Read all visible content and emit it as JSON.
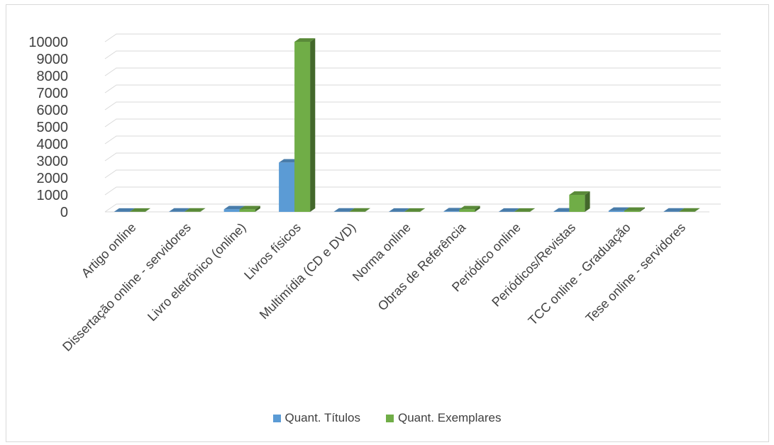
{
  "chart_data": {
    "type": "bar",
    "title": "",
    "xlabel": "",
    "ylabel": "",
    "ylim": [
      0,
      10000
    ],
    "yticks": [
      0,
      1000,
      2000,
      3000,
      4000,
      5000,
      6000,
      7000,
      8000,
      9000,
      10000
    ],
    "grid": true,
    "legend_position": "bottom",
    "categories": [
      "Artigo online",
      "Dissertação online - servidores",
      "Livro eletrônico (online)",
      "Livros físicos",
      "Multimídia (CD e DVD)",
      "Norma online",
      "Obras de Referência",
      "Periódico online",
      "Periódicos/Revistas",
      "TCC online - Graduação",
      "Tese online - servidores"
    ],
    "series": [
      {
        "name": "Quant. Títulos",
        "color": "#5b9bd5",
        "values": [
          5,
          10,
          150,
          2900,
          10,
          5,
          30,
          5,
          20,
          60,
          10
        ]
      },
      {
        "name": "Quant. Exemplares",
        "color": "#70ad47",
        "values": [
          5,
          10,
          150,
          10000,
          10,
          5,
          150,
          5,
          1000,
          60,
          10
        ]
      }
    ]
  }
}
